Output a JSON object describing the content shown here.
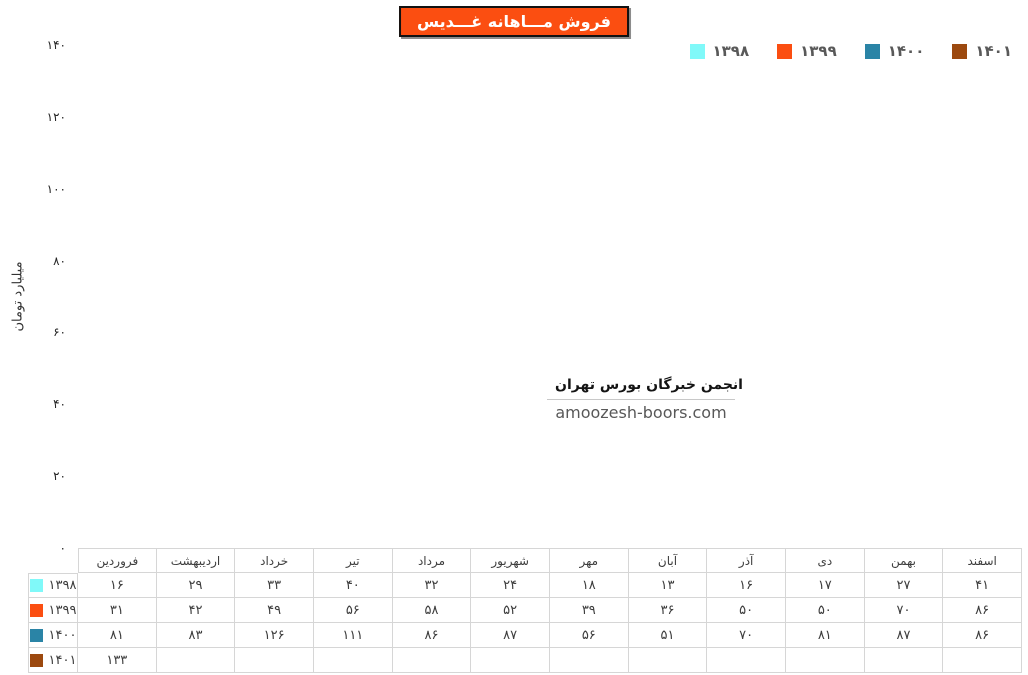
{
  "title": "فروش مـــاهانه غـــدیس",
  "watermark": {
    "line1": "انجمن خبرگان بورس تهران",
    "line2": "amoozesh-boors.com"
  },
  "colors": {
    "title_background": "#fb4e11",
    "series_1398": "#80f9f9",
    "series_1399": "#fb4e11",
    "series_1400": "#2a84a6",
    "series_1401": "#9c490f",
    "legend_text": "#595959",
    "table_border": "#d6d6d6",
    "table_text": "#3d3d3d"
  },
  "chart_data": {
    "type": "bar",
    "title": "فروش مـــاهانه غـــدیس",
    "xlabel": "",
    "ylabel": "میلیارد تومان",
    "ylim": [
      0,
      140
    ],
    "ytick_step": 20,
    "ytick_labels": [
      "۰",
      "۲۰",
      "۴۰",
      "۶۰",
      "۸۰",
      "۱۰۰",
      "۱۲۰",
      "۱۴۰"
    ],
    "grid": false,
    "legend_position": "top-right",
    "numeral_system": "persian",
    "categories": [
      "فروردین",
      "اردیبهشت",
      "خرداد",
      "تیر",
      "مرداد",
      "شهریور",
      "مهر",
      "آبان",
      "آذر",
      "دی",
      "بهمن",
      "اسفند"
    ],
    "series": [
      {
        "name": "۱۳۹۸",
        "color": "#80f9f9",
        "values": [
          16,
          29,
          33,
          40,
          32,
          24,
          18,
          13,
          16,
          17,
          27,
          41
        ]
      },
      {
        "name": "۱۳۹۹",
        "color": "#fb4e11",
        "values": [
          31,
          42,
          49,
          56,
          58,
          52,
          39,
          36,
          50,
          50,
          70,
          86
        ]
      },
      {
        "name": "۱۴۰۰",
        "color": "#2a84a6",
        "values": [
          81,
          83,
          126,
          111,
          86,
          87,
          56,
          51,
          70,
          81,
          87,
          86
        ]
      },
      {
        "name": "۱۴۰۱",
        "color": "#9c490f",
        "values": [
          133,
          null,
          null,
          null,
          null,
          null,
          null,
          null,
          null,
          null,
          null,
          null
        ]
      }
    ],
    "data_table_shown": true
  }
}
